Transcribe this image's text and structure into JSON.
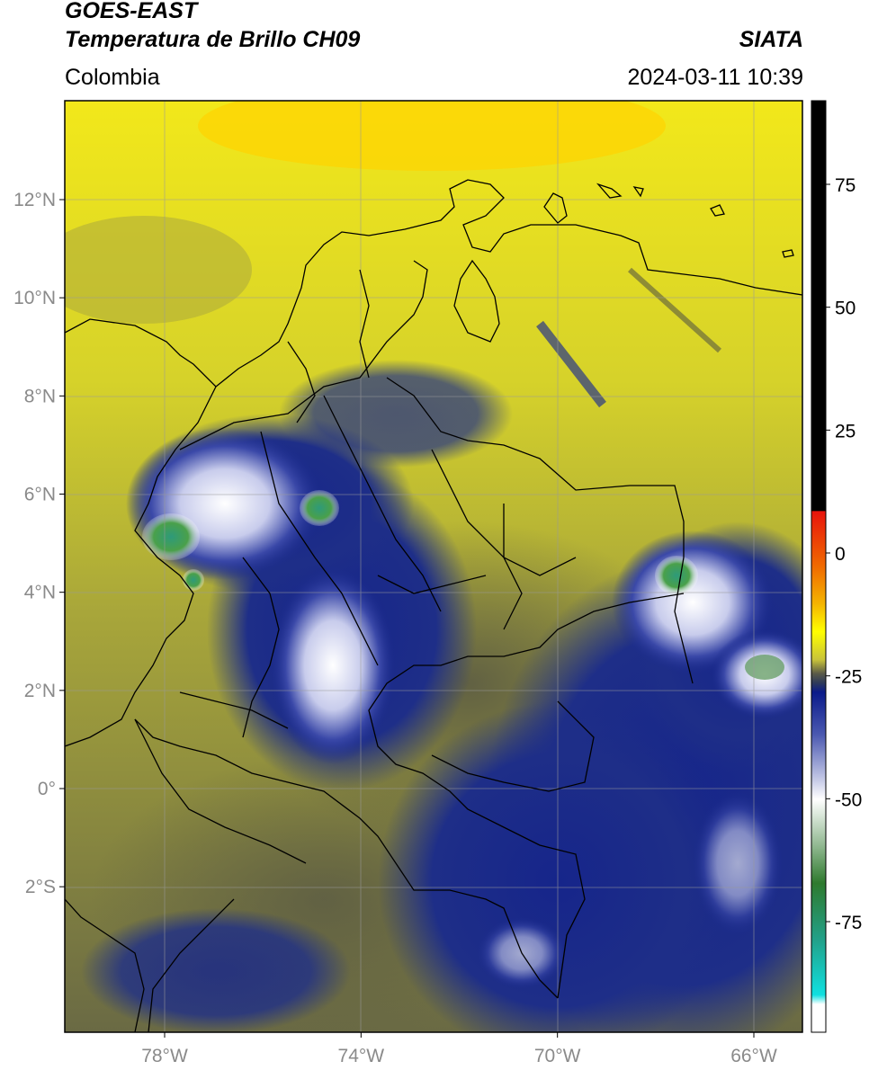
{
  "header": {
    "satellite": "GOES-EAST",
    "product": "Temperatura de Brillo CH09",
    "organization": "SIATA",
    "region": "Colombia",
    "timestamp": "2024-03-11 10:39"
  },
  "map": {
    "lat_ticks": [
      {
        "value": 12,
        "label": "12°N"
      },
      {
        "value": 10,
        "label": "10°N"
      },
      {
        "value": 8,
        "label": "8°N"
      },
      {
        "value": 6,
        "label": "6°N"
      },
      {
        "value": 4,
        "label": "4°N"
      },
      {
        "value": 2,
        "label": "2°N"
      },
      {
        "value": 0,
        "label": "0°"
      },
      {
        "value": -2,
        "label": "2°S"
      }
    ],
    "lon_ticks": [
      {
        "value": -78,
        "label": "78°W"
      },
      {
        "value": -74,
        "label": "74°W"
      },
      {
        "value": -70,
        "label": "70°W"
      },
      {
        "value": -66,
        "label": "66°W"
      }
    ],
    "lon_range": [
      -80,
      -65
    ],
    "lat_range": [
      -5,
      14
    ],
    "gridlines": true
  },
  "colorbar": {
    "ticks": [
      {
        "value": 75,
        "label": "75"
      },
      {
        "value": 50,
        "label": "50"
      },
      {
        "value": 25,
        "label": "25"
      },
      {
        "value": 0,
        "label": "0"
      },
      {
        "value": -25,
        "label": "-25"
      },
      {
        "value": -50,
        "label": "-50"
      },
      {
        "value": -75,
        "label": "-75"
      }
    ],
    "range": [
      -100,
      90
    ],
    "unit": "",
    "colors": {
      "black": "#000000",
      "red": "#e8140c",
      "orange": "#f49b00",
      "yellow": "#ffff00",
      "olive": "#b5b33a",
      "gray": "#4a4a40",
      "navy": "#1a2a8c",
      "white": "#ffffff",
      "green": "#3a8a3a",
      "teal": "#2ab5a0",
      "cyan": "#1ae0e0"
    }
  }
}
